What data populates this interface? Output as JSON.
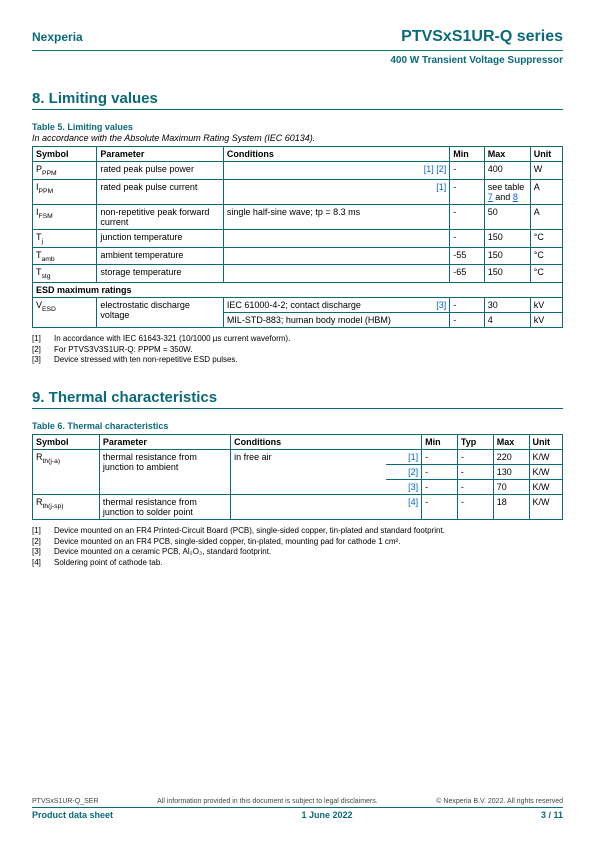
{
  "header": {
    "brand": "Nexperia",
    "series": "PTVSxS1UR-Q series",
    "subtitle": "400 W Transient Voltage Suppressor"
  },
  "section8": {
    "heading": "8.  Limiting values",
    "caption": "Table 5. Limiting values",
    "note": "In accordance with the Absolute Maximum Rating System (IEC 60134).",
    "columns": [
      "Symbol",
      "Parameter",
      "Conditions",
      "",
      "Min",
      "Max",
      "Unit"
    ],
    "rows": [
      {
        "sym": "P",
        "sub": "PPM",
        "param": "rated peak pulse power",
        "cond": "",
        "refs": "[1] [2]",
        "min": "-",
        "max": "400",
        "unit": "W"
      },
      {
        "sym": "I",
        "sub": "PPM",
        "param": "rated peak pulse current",
        "cond": "",
        "refs": "[1]",
        "min": "-",
        "max": "see table 7 and 8",
        "unit": "A"
      },
      {
        "sym": "I",
        "sub": "FSM",
        "param": "non-repetitive peak forward current",
        "cond": "single half-sine wave; tp = 8.3 ms",
        "refs": "",
        "min": "-",
        "max": "50",
        "unit": "A"
      },
      {
        "sym": "T",
        "sub": "j",
        "param": "junction temperature",
        "cond": "",
        "refs": "",
        "min": "-",
        "max": "150",
        "unit": "°C"
      },
      {
        "sym": "T",
        "sub": "amb",
        "param": "ambient temperature",
        "cond": "",
        "refs": "",
        "min": "-55",
        "max": "150",
        "unit": "°C"
      },
      {
        "sym": "T",
        "sub": "stg",
        "param": "storage temperature",
        "cond": "",
        "refs": "",
        "min": "-65",
        "max": "150",
        "unit": "°C"
      }
    ],
    "esd_heading": "ESD maximum ratings",
    "esd": {
      "sym": "V",
      "sub": "ESD",
      "param": "electrostatic discharge voltage",
      "cond1": "IEC 61000-4-2; contact discharge",
      "ref1": "[3]",
      "min1": "-",
      "max1": "30",
      "unit1": "kV",
      "cond2": "MIL-STD-883; human body model (HBM)",
      "ref2": "",
      "min2": "-",
      "max2": "4",
      "unit2": "kV"
    },
    "footnotes": [
      {
        "idx": "[1]",
        "text": "In accordance with IEC 61643-321 (10/1000 µs current waveform)."
      },
      {
        "idx": "[2]",
        "text": "For PTVS3V3S1UR-Q: PPPM = 350W."
      },
      {
        "idx": "[3]",
        "text": "Device stressed with ten non-repetitive ESD pulses."
      }
    ]
  },
  "section9": {
    "heading": "9.  Thermal characteristics",
    "caption": "Table 6. Thermal characteristics",
    "columns": [
      "Symbol",
      "Parameter",
      "Conditions",
      "",
      "Min",
      "Typ",
      "Max",
      "Unit"
    ],
    "row1": {
      "sym": "R",
      "sub": "th(j-a)",
      "param": "thermal resistance from junction to ambient",
      "cond": "in free air",
      "lines": [
        {
          "ref": "[1]",
          "min": "-",
          "typ": "-",
          "max": "220",
          "unit": "K/W"
        },
        {
          "ref": "[2]",
          "min": "-",
          "typ": "-",
          "max": "130",
          "unit": "K/W"
        },
        {
          "ref": "[3]",
          "min": "-",
          "typ": "-",
          "max": "70",
          "unit": "K/W"
        }
      ]
    },
    "row2": {
      "sym": "R",
      "sub": "th(j-sp)",
      "param": "thermal resistance from junction to solder point",
      "cond": "",
      "ref": "[4]",
      "min": "-",
      "typ": "-",
      "max": "18",
      "unit": "K/W"
    },
    "footnotes": [
      {
        "idx": "[1]",
        "text": "Device mounted on an FR4 Printed-Circuit Board (PCB), single-sided copper, tin-plated and standard footprint."
      },
      {
        "idx": "[2]",
        "text": "Device mounted on an FR4 PCB, single-sided copper, tin-plated, mounting pad for cathode 1 cm²."
      },
      {
        "idx": "[3]",
        "text": "Device mounted on a ceramic PCB, Al₂O₃, standard footprint."
      },
      {
        "idx": "[4]",
        "text": "Soldering point of cathode tab."
      }
    ]
  },
  "footer": {
    "code": "PTVSxS1UR-Q_SER",
    "disclaimer": "All information provided in this document is subject to legal disclaimers.",
    "copyright": "© Nexperia B.V. 2022. All rights reserved",
    "doc_type": "Product data sheet",
    "date": "1 June 2022",
    "page": "3 / 11"
  },
  "colors": {
    "teal": "#0a6a7a",
    "link": "#0066cc"
  }
}
